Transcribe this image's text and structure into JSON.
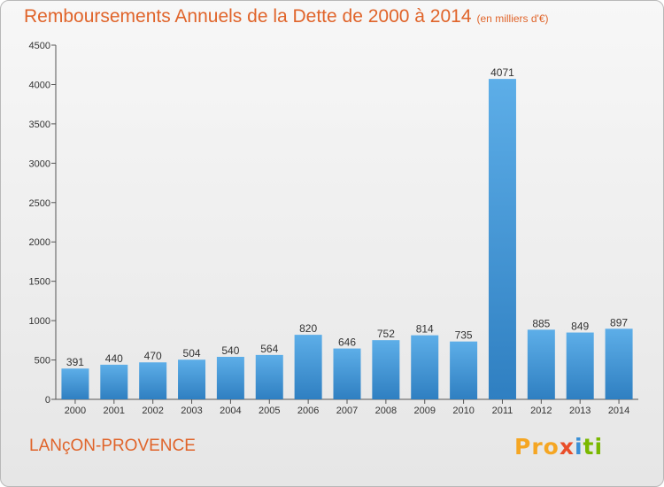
{
  "header": {
    "title": "Remboursements Annuels de la Dette de 2000 à 2014",
    "unit": "(en milliers d'€)"
  },
  "footer": {
    "commune": "LANçON-PROVENCE",
    "logo": [
      "Pro",
      "x",
      "i",
      "ti"
    ]
  },
  "colors": {
    "bar_top": "#5daee8",
    "bar_bottom": "#2f7fc1",
    "title": "#e0642a"
  },
  "chart_data": {
    "type": "bar",
    "title": "Remboursements Annuels de la Dette de 2000 à 2014",
    "subtitle": "(en milliers d'€)",
    "xlabel": "",
    "ylabel": "",
    "categories": [
      "2000",
      "2001",
      "2002",
      "2003",
      "2004",
      "2005",
      "2006",
      "2007",
      "2008",
      "2009",
      "2010",
      "2011",
      "2012",
      "2013",
      "2014"
    ],
    "values": [
      391,
      440,
      470,
      504,
      540,
      564,
      820,
      646,
      752,
      814,
      735,
      4071,
      885,
      849,
      897
    ],
    "ylim": [
      0,
      4500
    ],
    "yticks": [
      0,
      500,
      1000,
      1500,
      2000,
      2500,
      3000,
      3500,
      4000,
      4500
    ],
    "grid": false,
    "legend": "none"
  }
}
